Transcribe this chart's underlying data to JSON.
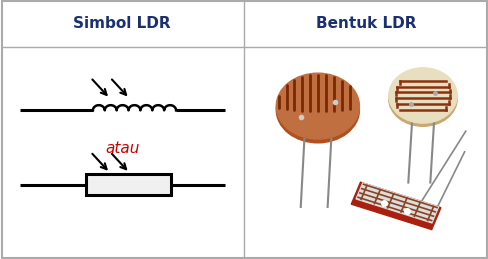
{
  "title_left": "Simbol LDR",
  "title_right": "Bentuk LDR",
  "title_color": "#1a3070",
  "title_fontsize": 11,
  "atau_text": "atau",
  "atau_color": "#cc0000",
  "background_color": "#ffffff",
  "border_color": "#aaaaaa",
  "divider_color": "#aaaaaa",
  "symbol_color": "#000000",
  "figsize": [
    4.89,
    2.59
  ],
  "dpi": 100,
  "arrow_color": "#000000",
  "resistor_color": "#000000",
  "box_color": "#000000",
  "ldr1_body": "#c07040",
  "ldr1_side": "#b05020",
  "ldr1_stripe": "#7a2800",
  "ldr2_body": "#e8dfc0",
  "ldr2_side": "#c8a870",
  "ldr2_stripe": "#8b3010",
  "leg_color": "#888888",
  "flat_red": "#aa2010",
  "flat_white": "#f5f5f5",
  "flat_body": "#dddddd"
}
